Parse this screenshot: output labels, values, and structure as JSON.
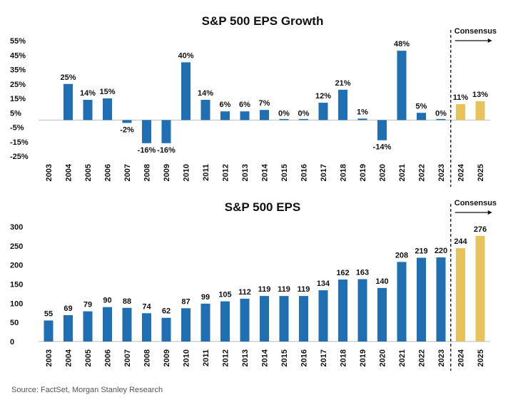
{
  "source": "Source: FactSet, Morgan Stanley Research",
  "colors": {
    "actual": "#1f6fb2",
    "consensus": "#e8c35a",
    "text": "#111111",
    "axis": "#bbbbbb"
  },
  "chart_data": [
    {
      "type": "bar",
      "title": "S&P 500 EPS Growth",
      "annotation": "Consensus",
      "categories": [
        "2003",
        "2004",
        "2005",
        "2006",
        "2007",
        "2008",
        "2009",
        "2010",
        "2011",
        "2012",
        "2013",
        "2014",
        "2015",
        "2016",
        "2017",
        "2018",
        "2019",
        "2020",
        "2021",
        "2022",
        "2023",
        "2024",
        "2025"
      ],
      "values": [
        null,
        25,
        14,
        15,
        -2,
        -16,
        -16,
        40,
        14,
        6,
        6,
        7,
        0,
        0,
        12,
        21,
        1,
        -14,
        48,
        5,
        0,
        11,
        13
      ],
      "data_labels": [
        "",
        "25%",
        "14%",
        "15%",
        "-2%",
        "-16%",
        "-16%",
        "40%",
        "14%",
        "6%",
        "6%",
        "7%",
        "0%",
        "0%",
        "12%",
        "21%",
        "1%",
        "-14%",
        "48%",
        "5%",
        "0%",
        "11%",
        "13%"
      ],
      "consensus_categories": [
        "2024",
        "2025"
      ],
      "yticks": [
        "55%",
        "45%",
        "35%",
        "25%",
        "15%",
        "5%",
        "-5%",
        "-15%",
        "-25%"
      ],
      "ylim": [
        -25,
        55
      ],
      "grid": false,
      "unit": "%"
    },
    {
      "type": "bar",
      "title": "S&P 500 EPS",
      "annotation": "Consensus",
      "categories": [
        "2003",
        "2004",
        "2005",
        "2006",
        "2007",
        "2008",
        "2009",
        "2010",
        "2011",
        "2012",
        "2013",
        "2014",
        "2015",
        "2016",
        "2017",
        "2018",
        "2019",
        "2020",
        "2021",
        "2022",
        "2023",
        "2024",
        "2025"
      ],
      "values": [
        55,
        69,
        79,
        90,
        88,
        74,
        62,
        87,
        99,
        105,
        112,
        119,
        119,
        119,
        134,
        162,
        163,
        140,
        208,
        219,
        220,
        244,
        276
      ],
      "data_labels": [
        "55",
        "69",
        "79",
        "90",
        "88",
        "74",
        "62",
        "87",
        "99",
        "105",
        "112",
        "119",
        "119",
        "119",
        "134",
        "162",
        "163",
        "140",
        "208",
        "219",
        "220",
        "244",
        "276"
      ],
      "consensus_categories": [
        "2024",
        "2025"
      ],
      "yticks": [
        "300",
        "250",
        "200",
        "150",
        "100",
        "50",
        "0"
      ],
      "ylim": [
        0,
        300
      ],
      "grid": false
    }
  ]
}
